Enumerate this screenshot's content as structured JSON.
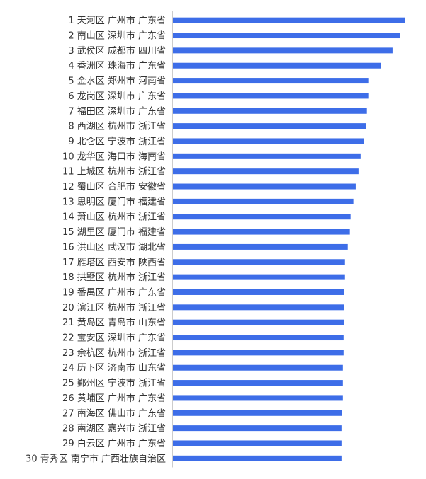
{
  "chart_data": {
    "type": "bar",
    "orientation": "horizontal",
    "bar_color": "#3d6de8",
    "axis_color": "#cccccc",
    "label_color": "#333333",
    "grid": false,
    "title": "",
    "xlabel": "",
    "ylabel": "",
    "xlim": [
      0,
      100
    ],
    "categories": [
      "1 天河区 广州市 广东省",
      "2 南山区 深圳市 广东省",
      "3 武侯区 成都市 四川省",
      "4 香洲区 珠海市 广东省",
      "5 金水区 郑州市 河南省",
      "6 龙岗区 深圳市 广东省",
      "7 福田区 深圳市 广东省",
      "8 西湖区 杭州市 浙江省",
      "9 北仑区 宁波市 浙江省",
      "10 龙华区 海口市 海南省",
      "11 上城区 杭州市 浙江省",
      "12 蜀山区 合肥市 安徽省",
      "13 思明区 厦门市 福建省",
      "14 萧山区 杭州市 浙江省",
      "15 湖里区 厦门市 福建省",
      "16 洪山区 武汉市 湖北省",
      "17 雁塔区 西安市 陕西省",
      "18 拱墅区 杭州市 浙江省",
      "19 番禺区 广州市 广东省",
      "20 滨江区 杭州市 浙江省",
      "21 黄岛区 青岛市 山东省",
      "22 宝安区 深圳市 广东省",
      "23 余杭区 杭州市 浙江省",
      "24 历下区 济南市 山东省",
      "25 鄞州区 宁波市 浙江省",
      "26 黄埔区 广州市 广东省",
      "27 南海区 佛山市 广东省",
      "28 南湖区 嘉兴市 浙江省",
      "29 白云区 广州市 广东省",
      "30 青秀区 南宁市 广西壮族自治区"
    ],
    "values": [
      100.0,
      97.6,
      94.5,
      89.6,
      84.1,
      84.1,
      83.5,
      83.2,
      82.3,
      80.8,
      79.9,
      78.7,
      77.7,
      76.5,
      76.2,
      75.3,
      74.1,
      74.1,
      73.8,
      73.8,
      73.8,
      73.5,
      73.5,
      73.2,
      73.2,
      73.2,
      72.9,
      72.6,
      72.6,
      72.6
    ]
  }
}
